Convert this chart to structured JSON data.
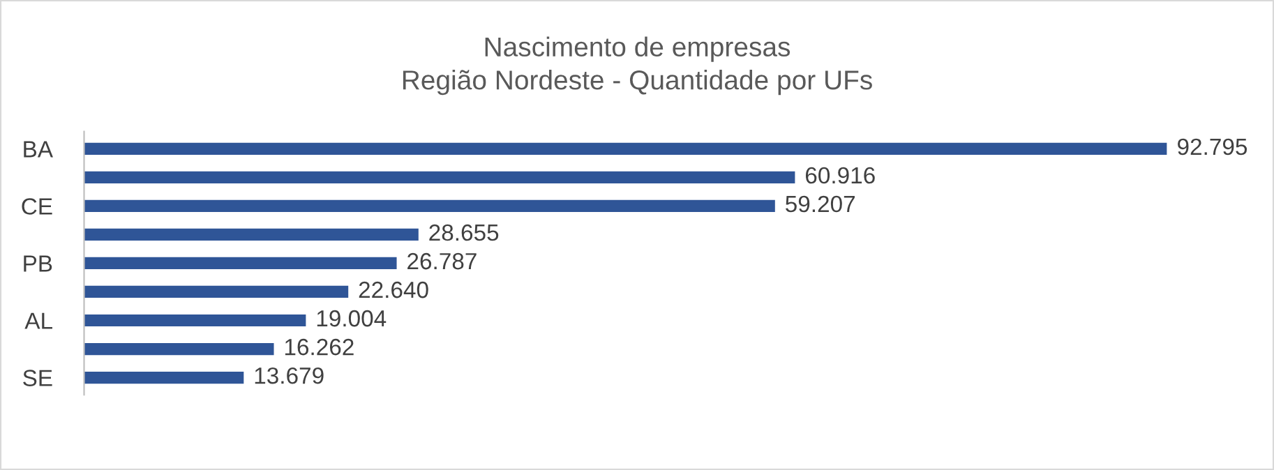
{
  "chart_data": {
    "type": "bar",
    "orientation": "horizontal",
    "title": "Nascimento de empresas\nRegião Nordeste - Quantidade por UFs",
    "categories": [
      "BA",
      null,
      "CE",
      null,
      "PB",
      null,
      "AL",
      null,
      "SE"
    ],
    "values": [
      92795,
      60916,
      59207,
      28655,
      26787,
      22640,
      19004,
      16262,
      13679
    ],
    "value_labels": [
      "92.795",
      "60.916",
      "59.207",
      "28.655",
      "26.787",
      "22.640",
      "19.004",
      "16.262",
      "13.679"
    ],
    "color": "#2f5597",
    "grid": false,
    "legend": false
  }
}
